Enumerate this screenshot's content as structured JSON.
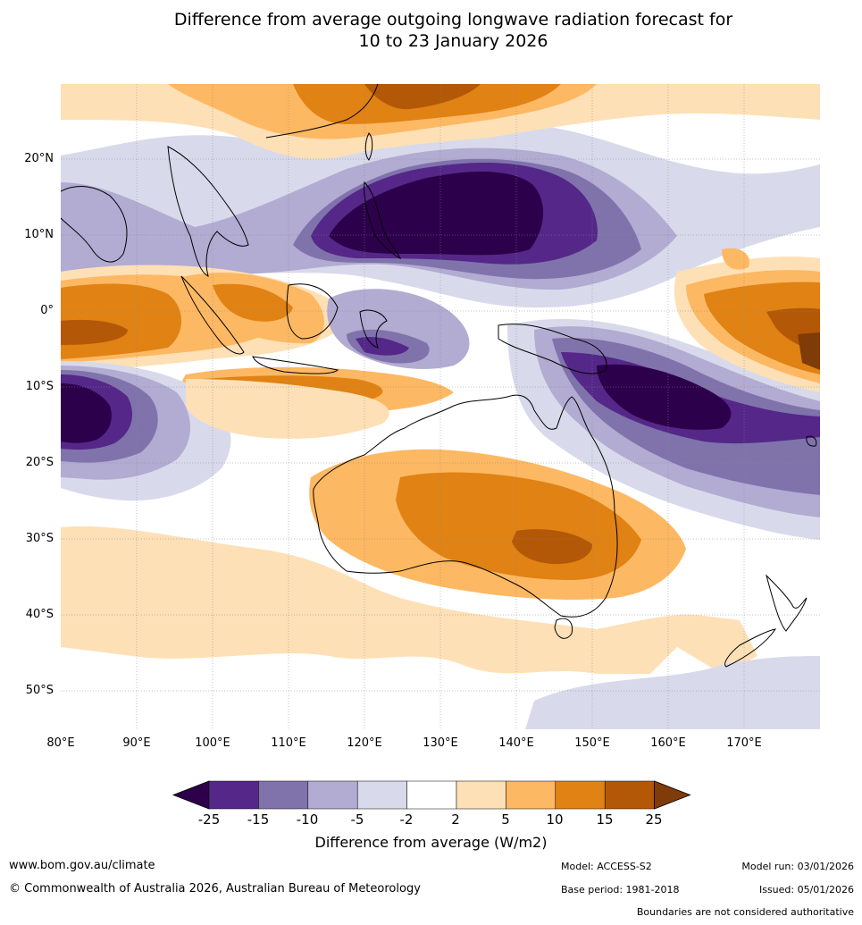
{
  "title": {
    "line1": "Difference from average outgoing longwave radiation forecast for",
    "line2": "10 to 23 January 2026"
  },
  "map": {
    "lat_labels": [
      "20°N",
      "10°N",
      "0°",
      "10°S",
      "20°S",
      "30°S",
      "40°S",
      "50°S"
    ],
    "lon_labels": [
      "80°E",
      "90°E",
      "100°E",
      "110°E",
      "120°E",
      "130°E",
      "140°E",
      "150°E",
      "160°E",
      "170°E"
    ]
  },
  "colorbar": {
    "labels": [
      "-25",
      "-15",
      "-10",
      "-5",
      "-2",
      "2",
      "5",
      "10",
      "15",
      "25"
    ],
    "colors": [
      "#2d004b",
      "#542788",
      "#8073ac",
      "#b2abd2",
      "#d8daeb",
      "#ffffff",
      "#fee0b6",
      "#fdb863",
      "#e08214",
      "#b35806",
      "#7f3b08"
    ],
    "title": "Difference from average (W/m2)"
  },
  "footer": {
    "website": "www.bom.gov.au/climate",
    "copyright": "© Commonwealth of Australia 2026, Australian Bureau of Meteorology",
    "model": "Model: ACCESS-S2",
    "model_run": "Model run: 03/01/2026",
    "base_period": "Base period: 1981-2018",
    "issued": "Issued: 05/01/2026",
    "disclaimer": "Boundaries are not considered authoritative"
  }
}
